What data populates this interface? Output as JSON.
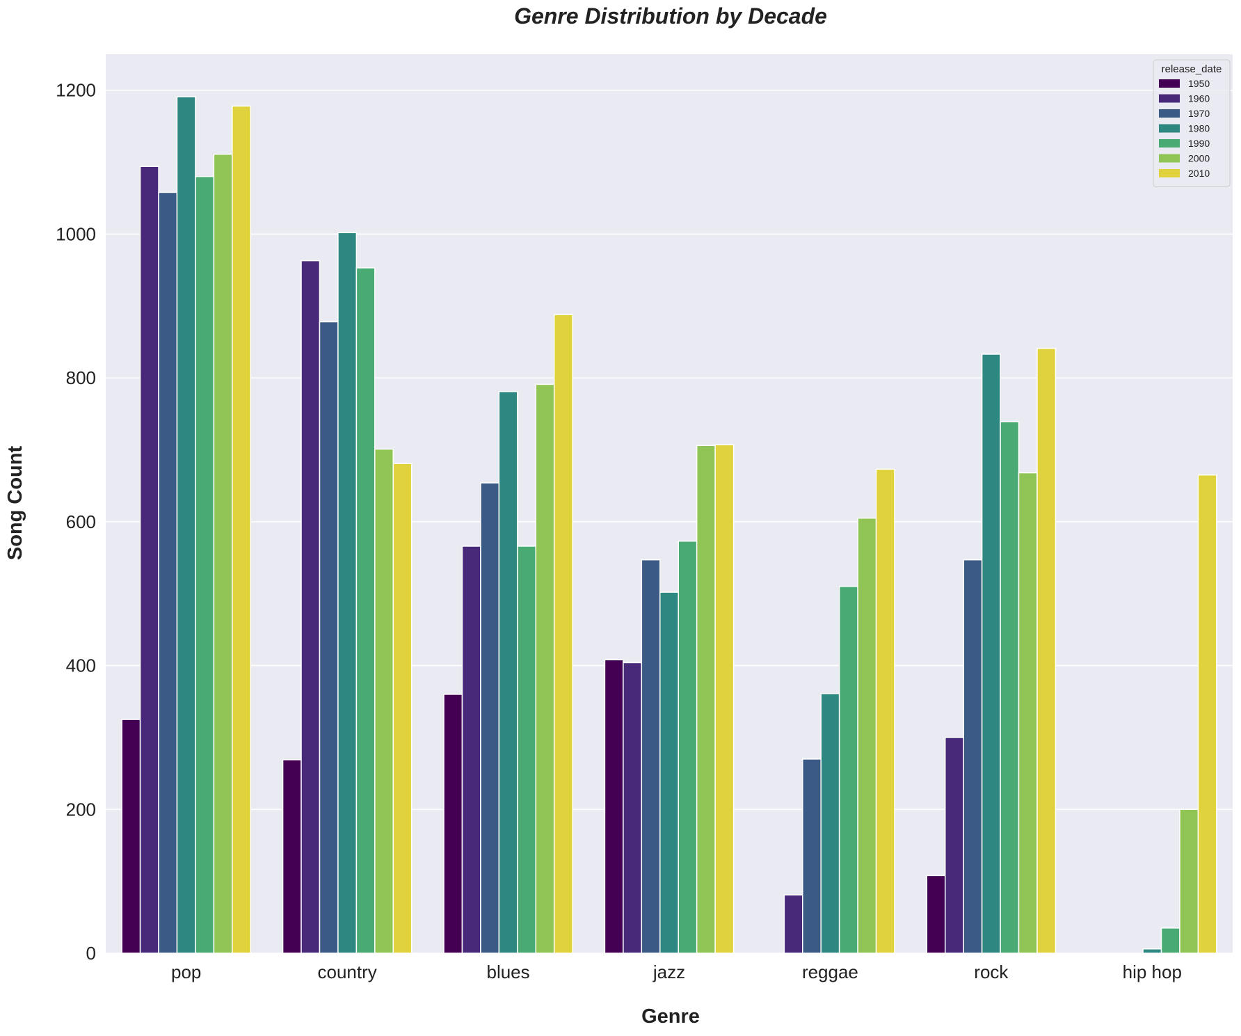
{
  "chart_data": {
    "type": "bar",
    "title": "Genre Distribution by Decade",
    "xlabel": "Genre",
    "ylabel": "Song Count",
    "categories": [
      "pop",
      "country",
      "blues",
      "jazz",
      "reggae",
      "rock",
      "hip hop"
    ],
    "ylim": [
      0,
      1250
    ],
    "yticks": [
      0,
      200,
      400,
      600,
      800,
      1000,
      1200
    ],
    "grid": true,
    "legend": {
      "title": "release_date",
      "position": "top-right"
    },
    "series": [
      {
        "name": "1950",
        "color": "#440154",
        "values": [
          325,
          269,
          360,
          408,
          0,
          108,
          0
        ]
      },
      {
        "name": "1960",
        "color": "#482979",
        "values": [
          1094,
          963,
          566,
          404,
          81,
          300,
          0
        ]
      },
      {
        "name": "1970",
        "color": "#3b5a85",
        "values": [
          1058,
          878,
          654,
          547,
          270,
          547,
          0
        ]
      },
      {
        "name": "1980",
        "color": "#2e8780",
        "values": [
          1191,
          1002,
          781,
          502,
          361,
          833,
          6
        ]
      },
      {
        "name": "1990",
        "color": "#49aa74",
        "values": [
          1080,
          953,
          566,
          573,
          510,
          739,
          35
        ]
      },
      {
        "name": "2000",
        "color": "#90c455",
        "values": [
          1111,
          701,
          791,
          706,
          605,
          668,
          200
        ]
      },
      {
        "name": "2010",
        "color": "#e0d23c",
        "values": [
          1178,
          681,
          888,
          707,
          673,
          841,
          665
        ]
      }
    ]
  },
  "colors": {
    "plot_background": "#eaeaf2",
    "grid": "#ffffff",
    "text": "#222222"
  }
}
